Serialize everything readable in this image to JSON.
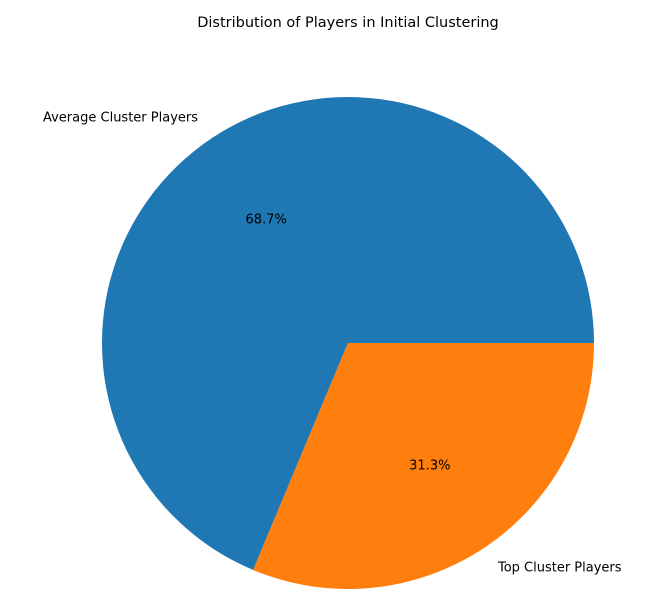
{
  "chart_data": {
    "type": "pie",
    "title": "Distribution of Players in Initial Clustering",
    "slices": [
      {
        "label": "Average Cluster Players",
        "value": 68.7,
        "pct_label": "68.7%",
        "color": "#1f77b4"
      },
      {
        "label": "Top Cluster Players",
        "value": 31.3,
        "pct_label": "31.3%",
        "color": "#ff7f0e"
      }
    ],
    "start_angle_deg": 0,
    "direction": "counterclockwise",
    "legend": "none",
    "grid": false
  }
}
